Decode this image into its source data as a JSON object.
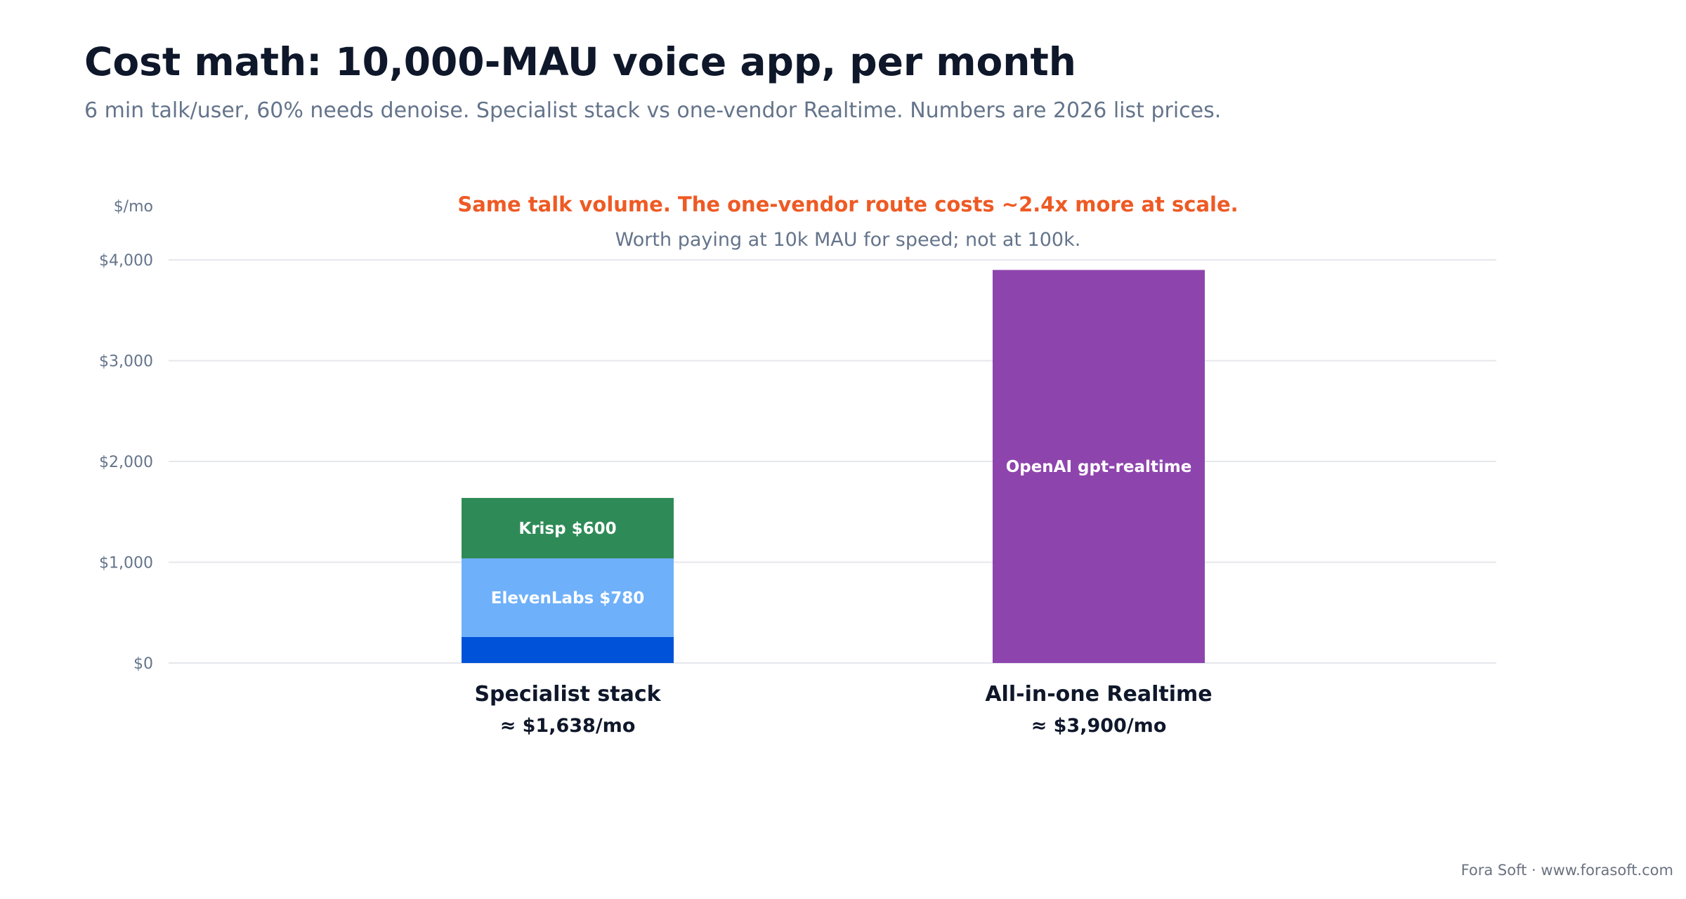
{
  "title": "Cost math: 10,000-MAU voice app, per month",
  "subtitle": "6 min talk/user, 60% needs denoise. Specialist stack vs one-vendor Realtime. Numbers are 2026 list prices.",
  "source": "Fora Soft · www.forasoft.com",
  "chart_data": {
    "type": "bar",
    "stacked": true,
    "annotation_title": "Same talk volume. The one-vendor route costs ~2.4x more at scale.",
    "annotation_subtitle": "Worth paying at 10k MAU for speed; not at 100k.",
    "ylabel": "$/mo",
    "ylim": [
      0,
      4000
    ],
    "y_ticks": [
      0,
      1000,
      2000,
      3000,
      4000
    ],
    "y_tick_labels": [
      "$0",
      "$1,000",
      "$2,000",
      "$3,000",
      "$4,000"
    ],
    "grid": true,
    "categories": [
      "Specialist stack",
      "All-in-one Realtime"
    ],
    "totals_labels": [
      "≈ $1,638/mo",
      "≈ $3,900/mo"
    ],
    "bars": [
      {
        "category": "Specialist stack",
        "segments": [
          {
            "value": 258,
            "label": "",
            "color": "#0052d9"
          },
          {
            "value": 780,
            "label": "ElevenLabs $780",
            "color": "#6eb0fa"
          },
          {
            "value": 600,
            "label": "Krisp $600",
            "color": "#2e8b57"
          }
        ]
      },
      {
        "category": "All-in-one Realtime",
        "segments": [
          {
            "value": 3900,
            "label": "OpenAI gpt-realtime",
            "color": "#8e44ad"
          }
        ]
      }
    ],
    "colors": {
      "annotation_title": "#ee5a24",
      "annotation_subtitle": "#64748b",
      "axis_text": "#64748b",
      "category_text": "#0f172a",
      "grid": "#e5e7eb",
      "segment_text": "#ffffff"
    }
  }
}
